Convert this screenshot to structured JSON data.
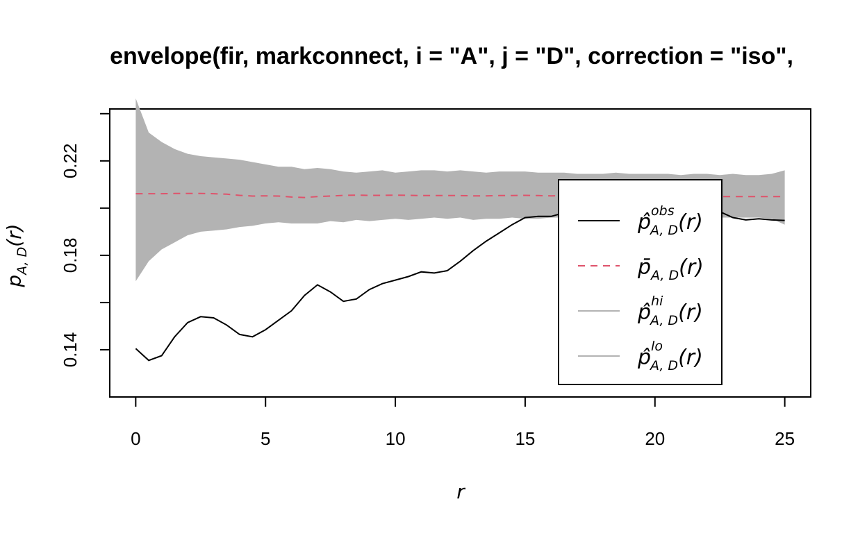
{
  "chart_data": {
    "type": "line",
    "title": "envelope(fir, markconnect, i = \"A\", j = \"D\", correction = \"iso\",",
    "xlabel": "r",
    "ylabel": "p",
    "ylabel_sub": "A, D",
    "ylabel_arg": "(r)",
    "xlim": [
      -1,
      26
    ],
    "ylim": [
      0.12,
      0.242
    ],
    "x_ticks": [
      0,
      5,
      10,
      15,
      20,
      25
    ],
    "x_tick_labels": [
      "0",
      "5",
      "10",
      "15",
      "20",
      "25"
    ],
    "y_ticks": [
      0.14,
      0.16,
      0.18,
      0.2,
      0.22,
      0.24
    ],
    "y_tick_labels": [
      "0.14",
      "",
      "0.18",
      "",
      "0.22",
      ""
    ],
    "grid": false,
    "legend_position": "right",
    "x": [
      0,
      0.5,
      1,
      1.5,
      2,
      2.5,
      3,
      3.5,
      4,
      4.5,
      5,
      5.5,
      6,
      6.5,
      7,
      7.5,
      8,
      8.5,
      9,
      9.5,
      10,
      10.5,
      11,
      11.5,
      12,
      12.5,
      13,
      13.5,
      14,
      14.5,
      15,
      15.5,
      16,
      16.5,
      17,
      17.5,
      18,
      18.5,
      19,
      19.5,
      20,
      20.5,
      21,
      21.5,
      22,
      22.5,
      23,
      23.5,
      24,
      24.5,
      25
    ],
    "series": [
      {
        "name": "obs",
        "legend": "p̂",
        "sup": "obs",
        "sub": "A, D",
        "arg": "(r)",
        "style": "solid",
        "color": "#000000",
        "values": [
          0.1405,
          0.1355,
          0.1375,
          0.1455,
          0.1515,
          0.154,
          0.1535,
          0.1505,
          0.1465,
          0.1455,
          0.1485,
          0.1525,
          0.1565,
          0.163,
          0.1675,
          0.1645,
          0.1605,
          0.1615,
          0.1655,
          0.168,
          0.1695,
          0.171,
          0.173,
          0.1725,
          0.1735,
          0.1775,
          0.182,
          0.186,
          0.1895,
          0.193,
          0.196,
          0.1965,
          0.1965,
          0.198,
          0.1995,
          0.2015,
          0.2005,
          0.1975,
          0.1975,
          0.199,
          0.198,
          0.198,
          0.197,
          0.1985,
          0.199,
          0.1985,
          0.196,
          0.195,
          0.1955,
          0.195,
          0.1948
        ]
      },
      {
        "name": "theo",
        "legend": "p̄",
        "sup": "",
        "sub": "A, D",
        "arg": "(r)",
        "style": "dashed",
        "color": "#df536b",
        "values": [
          0.2061,
          0.2061,
          0.2061,
          0.2062,
          0.2062,
          0.2062,
          0.2061,
          0.2059,
          0.2054,
          0.2051,
          0.2052,
          0.2051,
          0.2047,
          0.2045,
          0.2049,
          0.2051,
          0.2054,
          0.2055,
          0.2054,
          0.2054,
          0.2055,
          0.2054,
          0.2053,
          0.2053,
          0.2053,
          0.2053,
          0.2052,
          0.2052,
          0.2053,
          0.2053,
          0.2054,
          0.2053,
          0.2052,
          0.2053,
          0.2052,
          0.2052,
          0.2052,
          0.2052,
          0.2051,
          0.2051,
          0.2051,
          0.2051,
          0.205,
          0.2049,
          0.205,
          0.2049,
          0.2049,
          0.2049,
          0.2049,
          0.2049,
          0.2049
        ]
      },
      {
        "name": "hi",
        "legend": "p̂",
        "sup": "hi",
        "sub": "A, D",
        "arg": "(r)",
        "style": "band-upper",
        "color": "#b3b3b3",
        "values": [
          0.2465,
          0.232,
          0.228,
          0.225,
          0.223,
          0.222,
          0.2215,
          0.221,
          0.2205,
          0.2195,
          0.2185,
          0.2175,
          0.2175,
          0.2165,
          0.217,
          0.2165,
          0.2155,
          0.215,
          0.2155,
          0.216,
          0.215,
          0.2155,
          0.216,
          0.216,
          0.2155,
          0.216,
          0.2155,
          0.215,
          0.2155,
          0.2155,
          0.2155,
          0.215,
          0.215,
          0.215,
          0.2145,
          0.2145,
          0.2145,
          0.215,
          0.2145,
          0.2145,
          0.2145,
          0.2145,
          0.214,
          0.2145,
          0.2145,
          0.214,
          0.2145,
          0.214,
          0.214,
          0.2145,
          0.216
        ]
      },
      {
        "name": "lo",
        "legend": "p̂",
        "sup": "lo",
        "sub": "A, D",
        "arg": "(r)",
        "style": "band-lower",
        "color": "#b3b3b3",
        "values": [
          0.169,
          0.1775,
          0.1825,
          0.1855,
          0.1885,
          0.19,
          0.1905,
          0.191,
          0.192,
          0.1925,
          0.1935,
          0.194,
          0.1935,
          0.1935,
          0.1935,
          0.1945,
          0.194,
          0.195,
          0.1945,
          0.195,
          0.1955,
          0.195,
          0.1955,
          0.196,
          0.1955,
          0.196,
          0.195,
          0.1955,
          0.1955,
          0.196,
          0.1955,
          0.1955,
          0.196,
          0.196,
          0.1955,
          0.196,
          0.196,
          0.1965,
          0.1955,
          0.1955,
          0.1955,
          0.1965,
          0.196,
          0.196,
          0.196,
          0.196,
          0.196,
          0.196,
          0.196,
          0.1955,
          0.193
        ]
      }
    ]
  }
}
